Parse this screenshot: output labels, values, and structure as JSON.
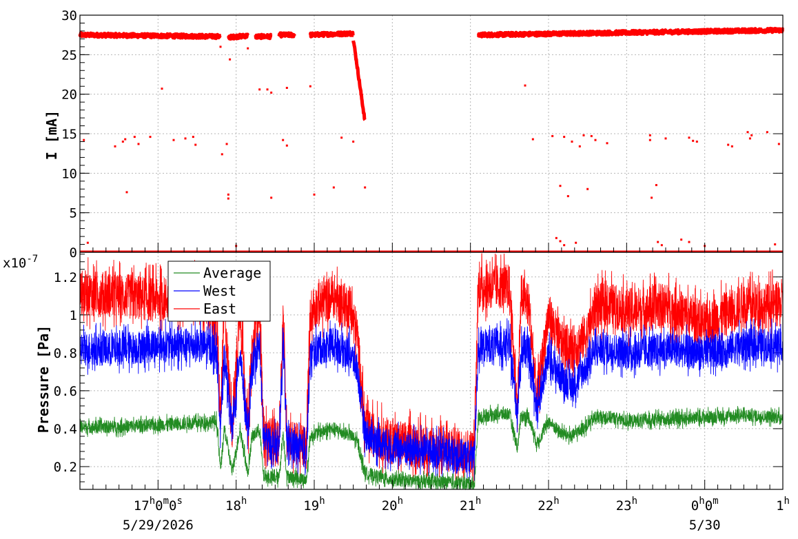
{
  "chart_data": [
    {
      "type": "scatter",
      "ylabel": "I [mA]",
      "ylim": [
        0,
        30
      ],
      "yticks": [
        "0",
        "5",
        "10",
        "15",
        "20",
        "25",
        "30"
      ],
      "grid": true,
      "color": "#ff0000",
      "x_unit": "hours since 16:00 on 5/29/2026",
      "segments": [
        {
          "x": [
            0.0,
            1.8
          ],
          "y": [
            27.5,
            27.3
          ]
        },
        {
          "x": [
            1.9,
            2.15
          ],
          "y": [
            27.2,
            27.4
          ]
        },
        {
          "x": [
            2.25,
            2.45
          ],
          "y": [
            27.3,
            27.3
          ]
        },
        {
          "x": [
            2.55,
            2.75
          ],
          "y": [
            27.5,
            27.5
          ]
        },
        {
          "x": [
            2.95,
            3.5
          ],
          "y": [
            27.5,
            27.7
          ]
        },
        {
          "x": [
            3.5,
            3.65
          ],
          "y": [
            27.0,
            16.5
          ]
        },
        {
          "x": [
            5.1,
            9.0
          ],
          "y": [
            27.5,
            28.1
          ]
        }
      ],
      "zero_level": {
        "x": [
          0.0,
          9.0
        ],
        "y": 0
      },
      "outliers": [
        [
          0.05,
          14.2
        ],
        [
          0.1,
          1.2
        ],
        [
          0.45,
          13.4
        ],
        [
          0.55,
          14
        ],
        [
          0.58,
          14.3
        ],
        [
          0.6,
          7.6
        ],
        [
          0.7,
          14.6
        ],
        [
          0.75,
          13.7
        ],
        [
          0.9,
          14.6
        ],
        [
          1.05,
          20.7
        ],
        [
          1.2,
          14.2
        ],
        [
          1.35,
          14.4
        ],
        [
          1.45,
          14.6
        ],
        [
          1.48,
          13.6
        ],
        [
          1.8,
          26
        ],
        [
          1.82,
          12.4
        ],
        [
          1.88,
          13.7
        ],
        [
          1.9,
          6.8
        ],
        [
          1.9,
          7.3
        ],
        [
          1.92,
          24.4
        ],
        [
          2.0,
          0.8
        ],
        [
          2.15,
          25.8
        ],
        [
          2.3,
          20.6
        ],
        [
          2.4,
          20.6
        ],
        [
          2.45,
          20.2
        ],
        [
          2.45,
          6.9
        ],
        [
          2.6,
          14.2
        ],
        [
          2.65,
          20.8
        ],
        [
          2.65,
          13.5
        ],
        [
          2.95,
          21
        ],
        [
          3.0,
          7.3
        ],
        [
          3.25,
          8.2
        ],
        [
          3.35,
          14.5
        ],
        [
          3.5,
          14
        ],
        [
          3.65,
          8.2
        ],
        [
          5.7,
          21.1
        ],
        [
          5.8,
          14.3
        ],
        [
          6.05,
          14.7
        ],
        [
          6.15,
          8.4
        ],
        [
          6.2,
          14.6
        ],
        [
          6.25,
          7.1
        ],
        [
          6.3,
          14
        ],
        [
          6.4,
          13.4
        ],
        [
          6.45,
          14.8
        ],
        [
          6.5,
          8
        ],
        [
          6.55,
          14.7
        ],
        [
          6.6,
          14.2
        ],
        [
          6.75,
          13.8
        ],
        [
          7.3,
          14.8
        ],
        [
          7.3,
          14.2
        ],
        [
          7.32,
          6.9
        ],
        [
          7.38,
          8.5
        ],
        [
          7.5,
          14.4
        ],
        [
          7.8,
          14.5
        ],
        [
          7.85,
          14.1
        ],
        [
          7.9,
          14
        ],
        [
          8.3,
          13.6
        ],
        [
          8.35,
          13.4
        ],
        [
          8.55,
          15.2
        ],
        [
          8.58,
          14.4
        ],
        [
          8.6,
          14.8
        ],
        [
          8.8,
          15.2
        ],
        [
          8.95,
          13.7
        ],
        [
          6.1,
          1.8
        ],
        [
          6.15,
          1.4
        ],
        [
          6.2,
          0.9
        ],
        [
          6.35,
          1.2
        ],
        [
          7.4,
          1.3
        ],
        [
          7.45,
          0.9
        ],
        [
          7.7,
          1.6
        ],
        [
          7.8,
          1.3
        ],
        [
          8.0,
          0.8
        ],
        [
          8.9,
          1.0
        ]
      ]
    },
    {
      "type": "line",
      "ylabel": "Pressure [Pa]",
      "exponent_label": "x10",
      "exponent_power": "-7",
      "ylim": [
        0.08,
        1.33
      ],
      "yticks": [
        "0.2",
        "0.4",
        "0.6",
        "0.8",
        "1",
        "1.2"
      ],
      "grid": true,
      "legend_position": "top-left",
      "legend": [
        {
          "name": "Average",
          "color": "#228b22"
        },
        {
          "name": "West",
          "color": "#0000ff"
        },
        {
          "name": "East",
          "color": "#ff0000"
        }
      ],
      "series": [
        {
          "name": "East",
          "color": "#ff0000",
          "x": [
            0.0,
            0.5,
            1.0,
            1.5,
            1.75,
            1.8,
            1.85,
            1.95,
            2.05,
            2.15,
            2.2,
            2.3,
            2.35,
            2.45,
            2.55,
            2.6,
            2.65,
            2.75,
            2.9,
            2.95,
            3.05,
            3.25,
            3.35,
            3.45,
            3.55,
            3.65,
            3.7,
            4.0,
            4.5,
            5.05,
            5.1,
            5.2,
            5.5,
            5.6,
            5.65,
            5.75,
            5.85,
            6.0,
            6.15,
            6.3,
            6.5,
            6.6,
            6.8,
            7.0,
            7.5,
            8.0,
            8.5,
            9.0
          ],
          "y": [
            1.12,
            1.1,
            1.08,
            1.1,
            0.95,
            0.45,
            1.05,
            0.4,
            1.05,
            0.38,
            0.8,
            1.05,
            0.36,
            0.33,
            0.32,
            1.0,
            0.36,
            0.32,
            0.3,
            1.02,
            1.05,
            1.1,
            1.05,
            1.05,
            0.9,
            0.4,
            0.38,
            0.33,
            0.3,
            0.28,
            1.15,
            1.15,
            1.15,
            0.5,
            1.1,
            1.05,
            0.55,
            1.0,
            0.85,
            0.82,
            0.9,
            1.05,
            1.05,
            1.02,
            1.05,
            0.95,
            1.05,
            1.05
          ],
          "noise": 0.12
        },
        {
          "name": "West",
          "color": "#0000ff",
          "x": [
            0.0,
            0.5,
            1.0,
            1.5,
            1.75,
            1.8,
            1.85,
            1.95,
            2.05,
            2.15,
            2.2,
            2.3,
            2.35,
            2.45,
            2.55,
            2.6,
            2.65,
            2.75,
            2.9,
            2.95,
            3.05,
            3.25,
            3.35,
            3.45,
            3.55,
            3.65,
            3.7,
            4.0,
            4.5,
            5.05,
            5.1,
            5.2,
            5.5,
            5.6,
            5.65,
            5.75,
            5.85,
            6.0,
            6.15,
            6.3,
            6.5,
            6.6,
            6.8,
            7.0,
            7.5,
            8.0,
            8.5,
            9.0
          ],
          "y": [
            0.82,
            0.82,
            0.84,
            0.84,
            0.82,
            0.42,
            0.8,
            0.38,
            0.82,
            0.36,
            0.7,
            0.85,
            0.35,
            0.32,
            0.3,
            0.85,
            0.34,
            0.3,
            0.28,
            0.78,
            0.82,
            0.85,
            0.82,
            0.8,
            0.72,
            0.38,
            0.36,
            0.3,
            0.28,
            0.25,
            0.82,
            0.84,
            0.84,
            0.48,
            0.82,
            0.8,
            0.5,
            0.78,
            0.68,
            0.62,
            0.74,
            0.82,
            0.82,
            0.8,
            0.82,
            0.8,
            0.84,
            0.84
          ],
          "noise": 0.09
        },
        {
          "name": "Average",
          "color": "#228b22",
          "x": [
            0.0,
            0.5,
            1.0,
            1.5,
            1.75,
            1.8,
            1.85,
            1.95,
            2.05,
            2.15,
            2.2,
            2.3,
            2.35,
            2.45,
            2.55,
            2.6,
            2.65,
            2.75,
            2.9,
            2.95,
            3.05,
            3.25,
            3.35,
            3.45,
            3.55,
            3.65,
            3.7,
            4.0,
            4.5,
            5.05,
            5.1,
            5.2,
            5.5,
            5.6,
            5.65,
            5.75,
            5.85,
            6.0,
            6.15,
            6.3,
            6.5,
            6.6,
            6.8,
            7.0,
            7.5,
            8.0,
            8.5,
            9.0
          ],
          "y": [
            0.41,
            0.41,
            0.42,
            0.43,
            0.44,
            0.18,
            0.4,
            0.17,
            0.4,
            0.16,
            0.35,
            0.4,
            0.15,
            0.14,
            0.14,
            0.38,
            0.15,
            0.14,
            0.13,
            0.36,
            0.38,
            0.4,
            0.38,
            0.37,
            0.33,
            0.17,
            0.16,
            0.13,
            0.12,
            0.11,
            0.45,
            0.47,
            0.48,
            0.3,
            0.47,
            0.46,
            0.32,
            0.44,
            0.38,
            0.36,
            0.42,
            0.46,
            0.46,
            0.44,
            0.45,
            0.46,
            0.47,
            0.46
          ],
          "noise": 0.035
        }
      ]
    }
  ],
  "x_axis": {
    "tick_labels": [
      {
        "x": 1,
        "base": "17",
        "sup1": "h",
        "mid1": "0",
        "sup2": "m",
        "mid2": "0",
        "sup3": "s"
      },
      {
        "x": 2,
        "base": "18",
        "sup1": "h"
      },
      {
        "x": 3,
        "base": "19",
        "sup1": "h"
      },
      {
        "x": 4,
        "base": "20",
        "sup1": "h"
      },
      {
        "x": 5,
        "base": "21",
        "sup1": "h"
      },
      {
        "x": 6,
        "base": "22",
        "sup1": "h"
      },
      {
        "x": 7,
        "base": "23",
        "sup1": "h"
      },
      {
        "x": 8,
        "base": "0",
        "sup1": "h",
        "mid1": "0",
        "sup2": "m"
      },
      {
        "x": 9,
        "base": "1",
        "sup1": "h"
      }
    ],
    "date_labels": [
      {
        "x": 1,
        "text": "5/29/2026"
      },
      {
        "x": 8,
        "text": "5/30"
      }
    ],
    "xlim": [
      0,
      9
    ]
  }
}
